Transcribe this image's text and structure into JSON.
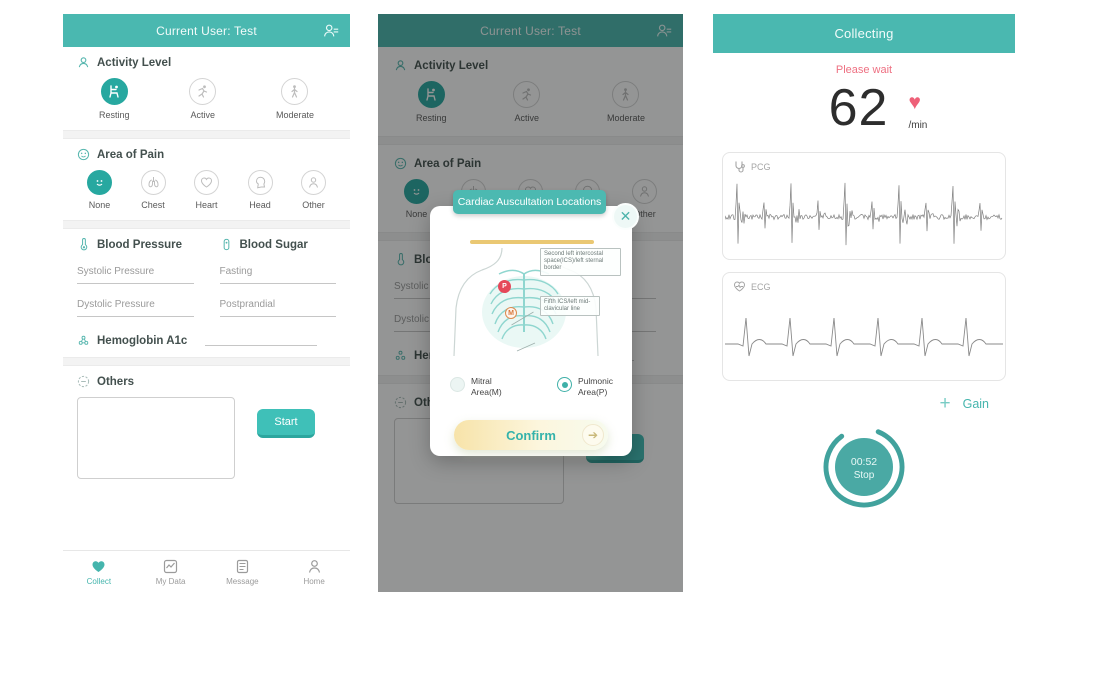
{
  "colors": {
    "accent_teal": "#4ab8b0",
    "selected_teal": "#27a8a0",
    "alert_pink": "#ee7082",
    "heart_pink": "#ee6078",
    "confirm_gold": "#eac873"
  },
  "collect_screen": {
    "header_title": "Current User: Test",
    "activity": {
      "title": "Activity Level",
      "options": [
        {
          "label": "Resting",
          "selected": true
        },
        {
          "label": "Active",
          "selected": false
        },
        {
          "label": "Moderate",
          "selected": false
        }
      ]
    },
    "pain": {
      "title": "Area of Pain",
      "options": [
        {
          "label": "None",
          "selected": true
        },
        {
          "label": "Chest",
          "selected": false
        },
        {
          "label": "Heart",
          "selected": false
        },
        {
          "label": "Head",
          "selected": false
        },
        {
          "label": "Other",
          "selected": false
        }
      ]
    },
    "blood_pressure": {
      "title": "Blood Pressure",
      "systolic_placeholder": "Systolic Pressure",
      "dystolic_placeholder": "Dystolic Pressure"
    },
    "blood_sugar": {
      "title": "Blood Sugar",
      "fasting_placeholder": "Fasting",
      "postprandial_placeholder": "Postprandial"
    },
    "hemoglobin_title": "Hemoglobin A1c",
    "others_title": "Others",
    "others_value": "",
    "start_label": "Start",
    "nav": [
      {
        "label": "Collect",
        "active": true
      },
      {
        "label": "My Data",
        "active": false
      },
      {
        "label": "Message",
        "active": false
      },
      {
        "label": "Home",
        "active": false
      }
    ]
  },
  "modal": {
    "title": "Cardiac Auscultation Locations",
    "annotation_second_ics": "Second left intercostal space(ICS)/left sternal border",
    "annotation_fifth_ics": "Fifth ICS/left mid-clavicular line",
    "marker_pulmonic": "P",
    "marker_mitral": "M",
    "radio_mitral": "Mitral Area(M)",
    "radio_pulmonic": "Pulmonic Area(P)",
    "radio_selected": "Pulmonic Area(P)",
    "confirm_label": "Confirm",
    "close_glyph": "✕"
  },
  "collecting_screen": {
    "header_title": "Collecting",
    "status_text": "Please wait",
    "heart_rate_value": "62",
    "heart_rate_unit": "/min",
    "heart_glyph": "♥",
    "pcg_label": "PCG",
    "ecg_label": "ECG",
    "plus_glyph": "+",
    "gain_label": "Gain",
    "timer_time": "00:52",
    "timer_action": "Stop"
  }
}
